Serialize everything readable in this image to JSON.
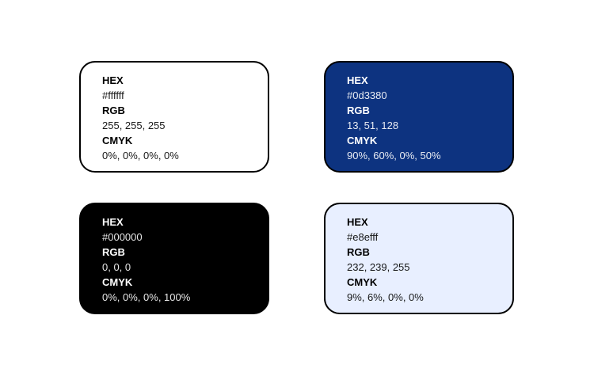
{
  "labels": {
    "hex": "HEX",
    "rgb": "RGB",
    "cmyk": "CMYK"
  },
  "swatches": [
    {
      "name": "white",
      "hex": "#ffffff",
      "rgb": "255, 255, 255",
      "cmyk": "0%, 0%, 0%, 0%",
      "background": "#ffffff",
      "text_color": "#000000"
    },
    {
      "name": "navy",
      "hex": "#0d3380",
      "rgb": "13, 51, 128",
      "cmyk": "90%, 60%, 0%, 50%",
      "background": "#0d3380",
      "text_color": "#ffffff"
    },
    {
      "name": "black",
      "hex": "#000000",
      "rgb": "0, 0, 0",
      "cmyk": "0%, 0%, 0%, 100%",
      "background": "#000000",
      "text_color": "#ffffff"
    },
    {
      "name": "light-blue",
      "hex": "#e8efff",
      "rgb": "232, 239, 255",
      "cmyk": "9%, 6%, 0%, 0%",
      "background": "#e8efff",
      "text_color": "#000000"
    }
  ]
}
